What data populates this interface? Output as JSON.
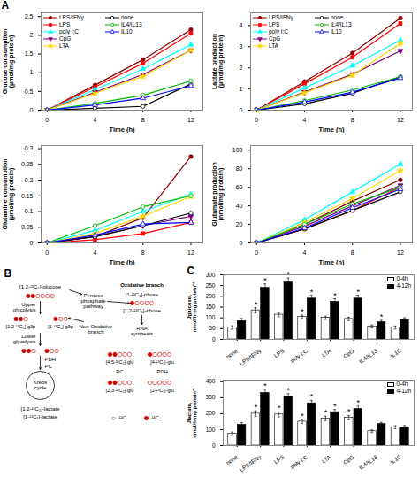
{
  "chart_data": [
    {
      "type": "line",
      "annotations": [
        "A"
      ],
      "xlabel": "Time (h)",
      "ylabel": "Glucose consumption\n(μmol/mg protein)",
      "x": [
        0,
        4,
        8,
        12
      ],
      "xlim": [
        -0.5,
        13
      ],
      "xticks": [
        0,
        4,
        8,
        12
      ],
      "ylim": [
        0,
        2.6
      ],
      "yticks": [
        0,
        0.5,
        1,
        1.5,
        2,
        2.5
      ],
      "legend": "upper left",
      "series": [
        {
          "name": "LPS/IFNγ",
          "color": "#8B0000",
          "marker": "circle",
          "values": [
            0,
            0.67,
            1.35,
            2.15
          ]
        },
        {
          "name": "LPS",
          "color": "#FF0000",
          "marker": "square",
          "values": [
            0,
            0.62,
            1.25,
            2.05
          ]
        },
        {
          "name": "poly I:C",
          "color": "#00FFFF",
          "marker": "triangle",
          "values": [
            0,
            0.55,
            1.1,
            1.75
          ]
        },
        {
          "name": "CpG",
          "color": "#800080",
          "marker": "triangle_down",
          "values": [
            0,
            0.48,
            0.95,
            1.6
          ]
        },
        {
          "name": "LTA",
          "color": "#FFD700",
          "marker": "star",
          "values": [
            0,
            0.45,
            0.9,
            1.6
          ]
        },
        {
          "name": "none",
          "color": "#000000",
          "marker": "circle_open",
          "values": [
            0,
            0.05,
            0.1,
            0.7
          ]
        },
        {
          "name": "IL4/IL13",
          "color": "#00BB00",
          "marker": "circle_open",
          "values": [
            0,
            0.18,
            0.4,
            0.78
          ]
        },
        {
          "name": "IL10",
          "color": "#0000FF",
          "marker": "triangle_open",
          "values": [
            0,
            0.14,
            0.32,
            0.65
          ]
        }
      ]
    },
    {
      "type": "line",
      "xlabel": "Time (h)",
      "ylabel": "Lactate production\n(μmol/mg protein)",
      "x": [
        0,
        4,
        8,
        12
      ],
      "xlim": [
        -0.5,
        13
      ],
      "xticks": [
        0,
        4,
        8,
        12
      ],
      "ylim": [
        0,
        4.6
      ],
      "yticks": [
        0,
        1,
        2,
        3,
        4
      ],
      "legend": "upper left",
      "series": [
        {
          "name": "LPS/IFNγ",
          "color": "#8B0000",
          "marker": "circle",
          "values": [
            0,
            1.35,
            2.7,
            4.35
          ]
        },
        {
          "name": "LPS",
          "color": "#FF0000",
          "marker": "square",
          "values": [
            0,
            1.25,
            2.5,
            4.1
          ]
        },
        {
          "name": "poly I:C",
          "color": "#00FFFF",
          "marker": "triangle",
          "values": [
            0,
            1.05,
            2.1,
            3.3
          ]
        },
        {
          "name": "CpG",
          "color": "#800080",
          "marker": "triangle_down",
          "values": [
            0,
            0.85,
            1.7,
            2.8
          ]
        },
        {
          "name": "LTA",
          "color": "#FFD700",
          "marker": "star",
          "values": [
            0,
            0.82,
            1.65,
            3.15
          ]
        },
        {
          "name": "none",
          "color": "#000000",
          "marker": "circle_open",
          "values": [
            0,
            0.3,
            0.8,
            1.58
          ]
        },
        {
          "name": "IL4/IL13",
          "color": "#00BB00",
          "marker": "circle_open",
          "values": [
            0,
            0.45,
            0.95,
            1.58
          ]
        },
        {
          "name": "IL10",
          "color": "#0000FF",
          "marker": "triangle_open",
          "values": [
            0,
            0.38,
            0.85,
            1.52
          ]
        }
      ]
    },
    {
      "type": "line",
      "xlabel": "Time (h)",
      "ylabel": "Glutamine consumption\n(μmol/mg protein)",
      "x": [
        0,
        4,
        8,
        12
      ],
      "xlim": [
        -0.5,
        13
      ],
      "xticks": [
        0,
        4,
        8,
        12
      ],
      "ylim": [
        0,
        0.31
      ],
      "yticks": [
        0,
        0.05,
        0.1,
        0.15,
        0.2,
        0.25,
        0.3
      ],
      "series": [
        {
          "name": "LPS/IFNγ",
          "color": "#8B0000",
          "marker": "circle",
          "values": [
            0,
            0.02,
            0.08,
            0.275
          ]
        },
        {
          "name": "LPS",
          "color": "#FF0000",
          "marker": "square",
          "values": [
            0,
            0.01,
            0.03,
            0.065
          ]
        },
        {
          "name": "poly I:C",
          "color": "#00FFFF",
          "marker": "triangle",
          "values": [
            0,
            0.04,
            0.1,
            0.155
          ]
        },
        {
          "name": "CpG",
          "color": "#800080",
          "marker": "triangle_down",
          "values": [
            0,
            0.02,
            0.055,
            0.085
          ]
        },
        {
          "name": "LTA",
          "color": "#FFD700",
          "marker": "star",
          "values": [
            0,
            0.03,
            0.085,
            0.148
          ]
        },
        {
          "name": "none",
          "color": "#000000",
          "marker": "circle_open",
          "values": [
            0,
            0.02,
            0.055,
            0.095
          ]
        },
        {
          "name": "IL4/IL13",
          "color": "#00BB00",
          "marker": "circle_open",
          "values": [
            0,
            0.055,
            0.115,
            0.15
          ]
        },
        {
          "name": "IL10",
          "color": "#0000FF",
          "marker": "triangle_open",
          "values": [
            0,
            0.025,
            0.06,
            0.065
          ]
        }
      ]
    },
    {
      "type": "line",
      "xlabel": "Time (h)",
      "ylabel": "Glutamate production\n(nmol/mg protein)",
      "x": [
        0,
        4,
        8,
        12
      ],
      "xlim": [
        -0.5,
        13
      ],
      "xticks": [
        0,
        4,
        8,
        12
      ],
      "ylim": [
        0,
        105
      ],
      "yticks": [
        0,
        20,
        40,
        60,
        80,
        100
      ],
      "series": [
        {
          "name": "LPS/IFNγ",
          "color": "#8B0000",
          "marker": "circle",
          "values": [
            0,
            20,
            45,
            68
          ]
        },
        {
          "name": "LPS",
          "color": "#FF0000",
          "marker": "square",
          "values": [
            0,
            15,
            35,
            60
          ]
        },
        {
          "name": "poly I:C",
          "color": "#00FFFF",
          "marker": "triangle",
          "values": [
            0,
            25,
            55,
            85
          ]
        },
        {
          "name": "CpG",
          "color": "#800080",
          "marker": "triangle_down",
          "values": [
            0,
            18,
            40,
            62
          ]
        },
        {
          "name": "LTA",
          "color": "#FFD700",
          "marker": "star",
          "values": [
            0,
            22,
            48,
            78
          ]
        },
        {
          "name": "none",
          "color": "#000000",
          "marker": "circle_open",
          "values": [
            0,
            15,
            35,
            55
          ]
        },
        {
          "name": "IL4/IL13",
          "color": "#00BB00",
          "marker": "circle_open",
          "values": [
            0,
            20,
            42,
            60
          ]
        },
        {
          "name": "IL10",
          "color": "#0000FF",
          "marker": "triangle_open",
          "values": [
            0,
            16,
            38,
            58
          ]
        }
      ]
    },
    {
      "type": "diagram",
      "color": "#CC0000",
      "annotations": [
        "B",
        "○",
        "¹²C",
        "¹³C",
        "[1,2-¹³C₂]-glucose",
        "Upper\nglycolysis",
        "[1,2-¹³C₂]-g3p",
        "[1-¹³C₁]-g3p",
        "Lower\nglycolysis",
        "PDH",
        "PC",
        "Krebs\ncycle",
        "[1,2-¹³C₂]-lactate",
        "[1-¹³C₁]-lactate",
        "Oxidative branch",
        "[1-¹³C₁]-ribose",
        "[1,2-¹³C₂]-ribose",
        "Pentose\nphosphate\npathway",
        "Non-Oxidative\nbranch",
        "RNA\nsynthesis",
        "[4,5-¹³C₂]-glu",
        "[4-¹³C₁]-glu",
        "PC",
        "[2,3-¹³C₂]-glu",
        "[2-¹³C₁]-glu",
        "PDH"
      ]
    },
    {
      "type": "bar",
      "annotations": [
        "C"
      ],
      "ylabel": "Jglucose,\nnmol/h·mg protein⁻¹",
      "categories": [
        "none",
        "LPS/IFNγ",
        "LPS",
        "poly I:C",
        "LTA",
        "CpG",
        "IL4/IL13",
        "IL10"
      ],
      "ylim": [
        0,
        300
      ],
      "yticks": [
        0,
        50,
        100,
        150,
        200,
        250,
        300
      ],
      "legend": "upper right",
      "series": [
        {
          "name": "0-4h",
          "color": "#ffffff",
          "values": [
            55,
            135,
            115,
            105,
            100,
            95,
            60,
            55
          ],
          "errors": [
            8,
            12,
            10,
            8,
            8,
            8,
            7,
            7
          ],
          "stars": [
            null,
            "*",
            null,
            "*",
            null,
            null,
            null,
            null
          ]
        },
        {
          "name": "4-12h",
          "color": "#000000",
          "values": [
            85,
            240,
            265,
            190,
            175,
            190,
            80,
            90
          ],
          "errors": [
            12,
            18,
            20,
            15,
            14,
            15,
            8,
            10
          ],
          "stars": [
            null,
            "*",
            "*",
            "*",
            "*",
            "*",
            "*",
            null
          ]
        }
      ]
    },
    {
      "type": "bar",
      "ylabel": "Jlactate,\nnmol/h·mg protein⁻¹",
      "categories": [
        "none",
        "LPS/IFNγ",
        "LPS",
        "poly I:C",
        "LTA",
        "CpG",
        "IL4/IL13",
        "IL10"
      ],
      "ylim": [
        0,
        410
      ],
      "yticks": [
        0,
        100,
        200,
        300,
        400
      ],
      "legend": "upper right",
      "series": [
        {
          "name": "0-4h",
          "color": "#ffffff",
          "values": [
            75,
            200,
            195,
            150,
            170,
            175,
            90,
            115
          ],
          "errors": [
            10,
            18,
            16,
            12,
            14,
            14,
            8,
            9
          ],
          "stars": [
            null,
            "*",
            "*",
            "*",
            "*",
            "*",
            null,
            null
          ]
        },
        {
          "name": "4-12h",
          "color": "#000000",
          "values": [
            130,
            330,
            305,
            265,
            210,
            230,
            135,
            115
          ],
          "errors": [
            14,
            22,
            20,
            18,
            16,
            18,
            10,
            10
          ],
          "stars": [
            null,
            "*",
            "*",
            "*",
            "*",
            "*",
            null,
            null
          ]
        }
      ]
    }
  ]
}
